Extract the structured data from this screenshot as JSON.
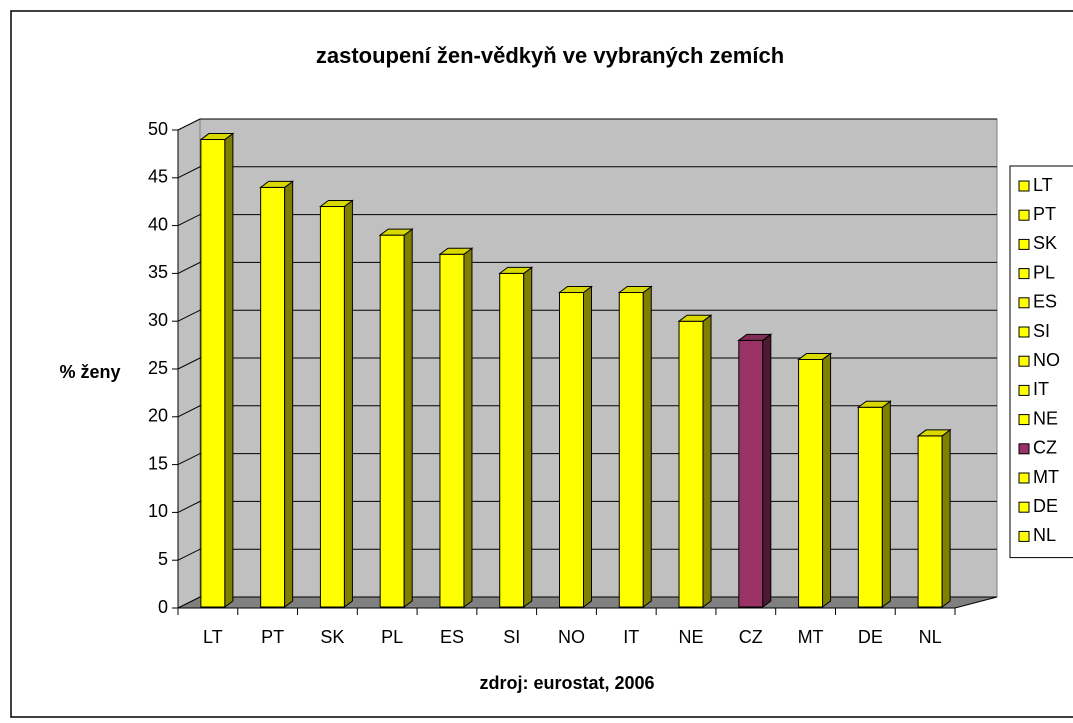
{
  "chart_data": {
    "type": "bar3d",
    "title": "zastoupení žen-vědkyň ve vybraných zemích",
    "y_axis_label": "% ženy",
    "x_axis_label": "zdroj: eurostat, 2006",
    "categories": [
      "LT",
      "PT",
      "SK",
      "PL",
      "ES",
      "SI",
      "NO",
      "IT",
      "NE",
      "CZ",
      "MT",
      "DE",
      "NL"
    ],
    "values": [
      49,
      44,
      42,
      39,
      37,
      35,
      33,
      33,
      30,
      28,
      26,
      21,
      18
    ],
    "colors": [
      "#ffff00",
      "#ffff00",
      "#ffff00",
      "#ffff00",
      "#ffff00",
      "#ffff00",
      "#ffff00",
      "#ffff00",
      "#ffff00",
      "#993366",
      "#ffff00",
      "#ffff00",
      "#ffff00"
    ],
    "ylim": [
      0,
      50
    ],
    "yticks": [
      0,
      5,
      10,
      15,
      20,
      25,
      30,
      35,
      40,
      45,
      50
    ],
    "grid": true,
    "legend": "right"
  }
}
